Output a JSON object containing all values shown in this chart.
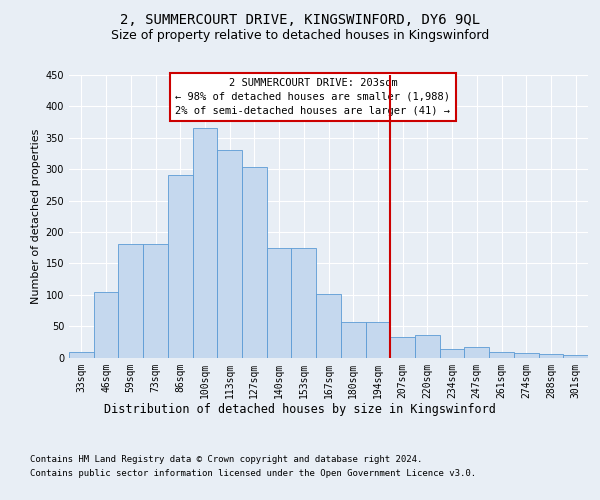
{
  "title": "2, SUMMERCOURT DRIVE, KINGSWINFORD, DY6 9QL",
  "subtitle": "Size of property relative to detached houses in Kingswinford",
  "xlabel": "Distribution of detached houses by size in Kingswinford",
  "ylabel": "Number of detached properties",
  "footer_line1": "Contains HM Land Registry data © Crown copyright and database right 2024.",
  "footer_line2": "Contains public sector information licensed under the Open Government Licence v3.0.",
  "categories": [
    "33sqm",
    "46sqm",
    "59sqm",
    "73sqm",
    "86sqm",
    "100sqm",
    "113sqm",
    "127sqm",
    "140sqm",
    "153sqm",
    "167sqm",
    "180sqm",
    "194sqm",
    "207sqm",
    "220sqm",
    "234sqm",
    "247sqm",
    "261sqm",
    "274sqm",
    "288sqm",
    "301sqm"
  ],
  "bar_heights": [
    9,
    104,
    181,
    181,
    291,
    366,
    330,
    304,
    175,
    175,
    101,
    57,
    57,
    33,
    36,
    14,
    17,
    9,
    7,
    5,
    4
  ],
  "bar_color": "#c5d8ee",
  "bar_edge_color": "#5b9bd5",
  "vline_x": 13.0,
  "vline_color": "#cc0000",
  "annotation_title": "2 SUMMERCOURT DRIVE: 203sqm",
  "annotation_line1": "← 98% of detached houses are smaller (1,988)",
  "annotation_line2": "2% of semi-detached houses are larger (41) →",
  "ylim": [
    0,
    450
  ],
  "yticks": [
    0,
    50,
    100,
    150,
    200,
    250,
    300,
    350,
    400,
    450
  ],
  "bg_color": "#e8eef5",
  "plot_bg_color": "#e8eef5",
  "grid_color": "#ffffff",
  "title_fontsize": 10,
  "subtitle_fontsize": 9,
  "xlabel_fontsize": 8.5,
  "ylabel_fontsize": 8,
  "tick_fontsize": 7,
  "annotation_fontsize": 7.5,
  "footer_fontsize": 6.5
}
